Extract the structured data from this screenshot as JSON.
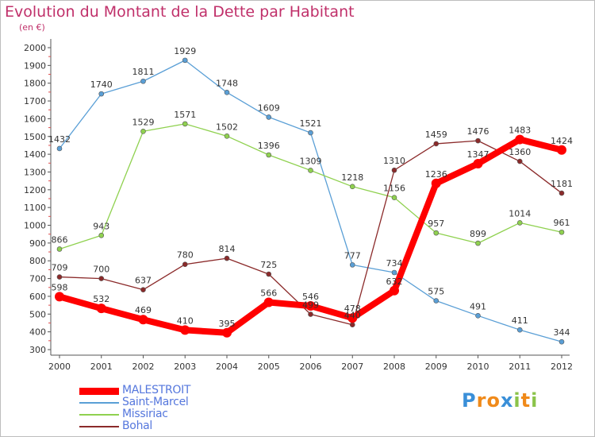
{
  "chart_data": {
    "type": "line",
    "title": "Evolution du Montant de la Dette par Habitant",
    "subtitle": "(en €)",
    "xlabel": "",
    "ylabel": "",
    "x": [
      "2000",
      "2001",
      "2002",
      "2003",
      "2004",
      "2005",
      "2006",
      "2007",
      "2008",
      "2009",
      "2010",
      "2011",
      "2012"
    ],
    "ylim": [
      300,
      2000
    ],
    "yticks": [
      "300",
      "400",
      "500",
      "600",
      "700",
      "800",
      "900",
      "1000",
      "1100",
      "1200",
      "1300",
      "1400",
      "1500",
      "1600",
      "1700",
      "1800",
      "1900",
      "2000"
    ],
    "grid": false,
    "legend_position": "bottom-left",
    "series": [
      {
        "name": "MALESTROIT",
        "color": "#ff0000",
        "label_color": "#5577dd",
        "bold": true,
        "values": [
          598,
          532,
          469,
          410,
          395,
          566,
          546,
          478,
          632,
          1236,
          1347,
          1483,
          1424
        ],
        "labels": [
          "598",
          "532",
          "469",
          "410",
          "395",
          "566",
          "546",
          "478",
          "632",
          "1236",
          "1347",
          "1483",
          "1424"
        ]
      },
      {
        "name": "Saint-Marcel",
        "color": "#5a9fd6",
        "label_color": "#5577dd",
        "bold": false,
        "values": [
          1432,
          1740,
          1811,
          1929,
          1748,
          1609,
          1521,
          777,
          734,
          575,
          491,
          411,
          344
        ],
        "labels": [
          "1432",
          "1740",
          "1811",
          "1929",
          "1748",
          "1609",
          "1521",
          "777",
          "734",
          "575",
          "491",
          "411",
          "344"
        ]
      },
      {
        "name": "Missiriac",
        "color": "#8fd14f",
        "label_color": "#5577dd",
        "bold": false,
        "values": [
          866,
          943,
          1529,
          1571,
          1502,
          1396,
          1309,
          1218,
          1156,
          957,
          899,
          1014,
          961
        ],
        "labels": [
          "866",
          "943",
          "1529",
          "1571",
          "1502",
          "1396",
          "1309",
          "1218",
          "1156",
          "957",
          "899",
          "1014",
          "961"
        ]
      },
      {
        "name": "Bohal",
        "color": "#8b2a2a",
        "label_color": "#5577dd",
        "bold": false,
        "values": [
          709,
          700,
          637,
          780,
          814,
          725,
          499,
          440,
          1310,
          1459,
          1476,
          1360,
          1181
        ],
        "labels": [
          "709",
          "700",
          "637",
          "780",
          "814",
          "725",
          "499",
          "440",
          "1310",
          "1459",
          "1476",
          "1360",
          "1181"
        ]
      }
    ]
  },
  "logo": {
    "text": "Proxiti",
    "letters": [
      "P",
      "r",
      "o",
      "x",
      "i",
      "t",
      "i"
    ],
    "colors": [
      "#3a8fd8",
      "#f08a1a",
      "#f08a1a",
      "#3a8fd8",
      "#8bc34a",
      "#f08a1a",
      "#8bc34a"
    ]
  }
}
